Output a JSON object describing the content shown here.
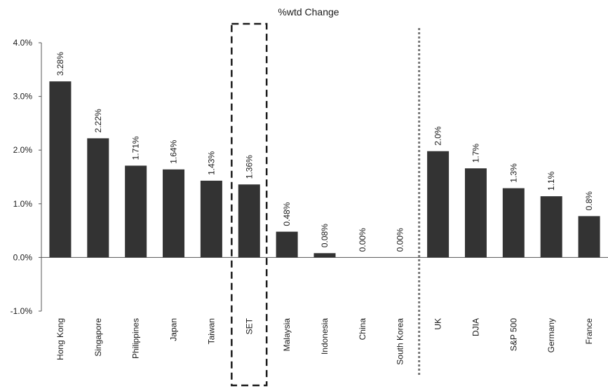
{
  "chart_data": {
    "type": "bar",
    "title": "%wtd Change",
    "xlabel": "",
    "ylabel": "",
    "ylim": [
      -1.0,
      4.0
    ],
    "yticks": [
      "4.0%",
      "3.0%",
      "2.0%",
      "1.0%",
      "0.0%",
      "-1.0%"
    ],
    "yticks_values": [
      4.0,
      3.0,
      2.0,
      1.0,
      0.0,
      -1.0
    ],
    "grid": false,
    "bar_color": "#333333",
    "highlighted_category": "SET",
    "separator_after_category": "South Korea",
    "categories": [
      "Hong Kong",
      "Singapore",
      "Philippines",
      "Japan",
      "Taiwan",
      "SET",
      "Malaysia",
      "Indonesia",
      "China",
      "South Korea",
      "UK",
      "DJIA",
      "S&P 500",
      "Germany",
      "France"
    ],
    "values": [
      3.28,
      2.22,
      1.71,
      1.64,
      1.43,
      1.36,
      0.48,
      0.08,
      0.0,
      0.0,
      1.98,
      1.66,
      1.29,
      1.14,
      0.77
    ],
    "data_labels": [
      "3.28%",
      "2.22%",
      "1.71%",
      "1.64%",
      "1.43%",
      "1.36%",
      "0.48%",
      "0.08%",
      "0.00%",
      "0.00%",
      "2.0%",
      "1.7%",
      "1.3%",
      "1.1%",
      "0.8%"
    ]
  }
}
